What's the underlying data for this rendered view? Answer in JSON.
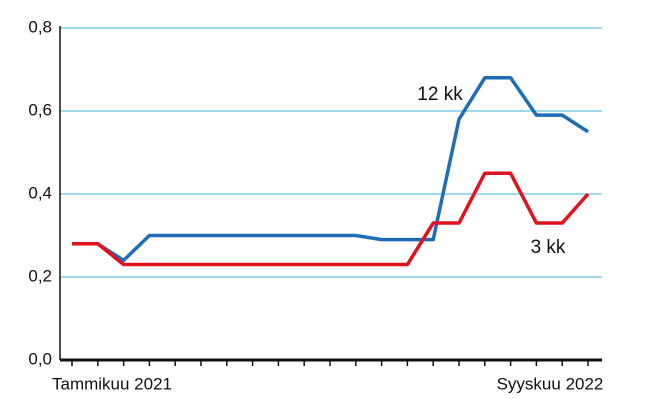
{
  "chart_data": {
    "type": "line",
    "categories": [
      "Tammikuu 2021",
      null,
      null,
      null,
      null,
      null,
      null,
      null,
      null,
      null,
      null,
      null,
      null,
      null,
      null,
      null,
      null,
      null,
      null,
      null,
      "Syyskuu 2022"
    ],
    "series": [
      {
        "name": "12 kk",
        "color": "#1f6db5",
        "values": [
          0.28,
          0.28,
          0.24,
          0.3,
          0.3,
          0.3,
          0.3,
          0.3,
          0.3,
          0.3,
          0.3,
          0.3,
          0.29,
          0.29,
          0.29,
          0.58,
          0.68,
          0.68,
          0.59,
          0.59,
          0.55
        ]
      },
      {
        "name": "3 kk",
        "color": "#e0121e",
        "values": [
          0.28,
          0.28,
          0.23,
          0.23,
          0.23,
          0.23,
          0.23,
          0.23,
          0.23,
          0.23,
          0.23,
          0.23,
          0.23,
          0.23,
          0.33,
          0.33,
          0.45,
          0.45,
          0.33,
          0.33,
          0.4
        ]
      }
    ],
    "ylim": [
      0,
      0.8
    ],
    "yticks": [
      {
        "value": 0,
        "label": "0,0"
      },
      {
        "value": 0.2,
        "label": "0,2"
      },
      {
        "value": 0.4,
        "label": "0,4"
      },
      {
        "value": 0.6,
        "label": "0,6"
      },
      {
        "value": 0.8,
        "label": "0,8"
      }
    ],
    "grid": true,
    "grid_color": "#3ab4de"
  }
}
